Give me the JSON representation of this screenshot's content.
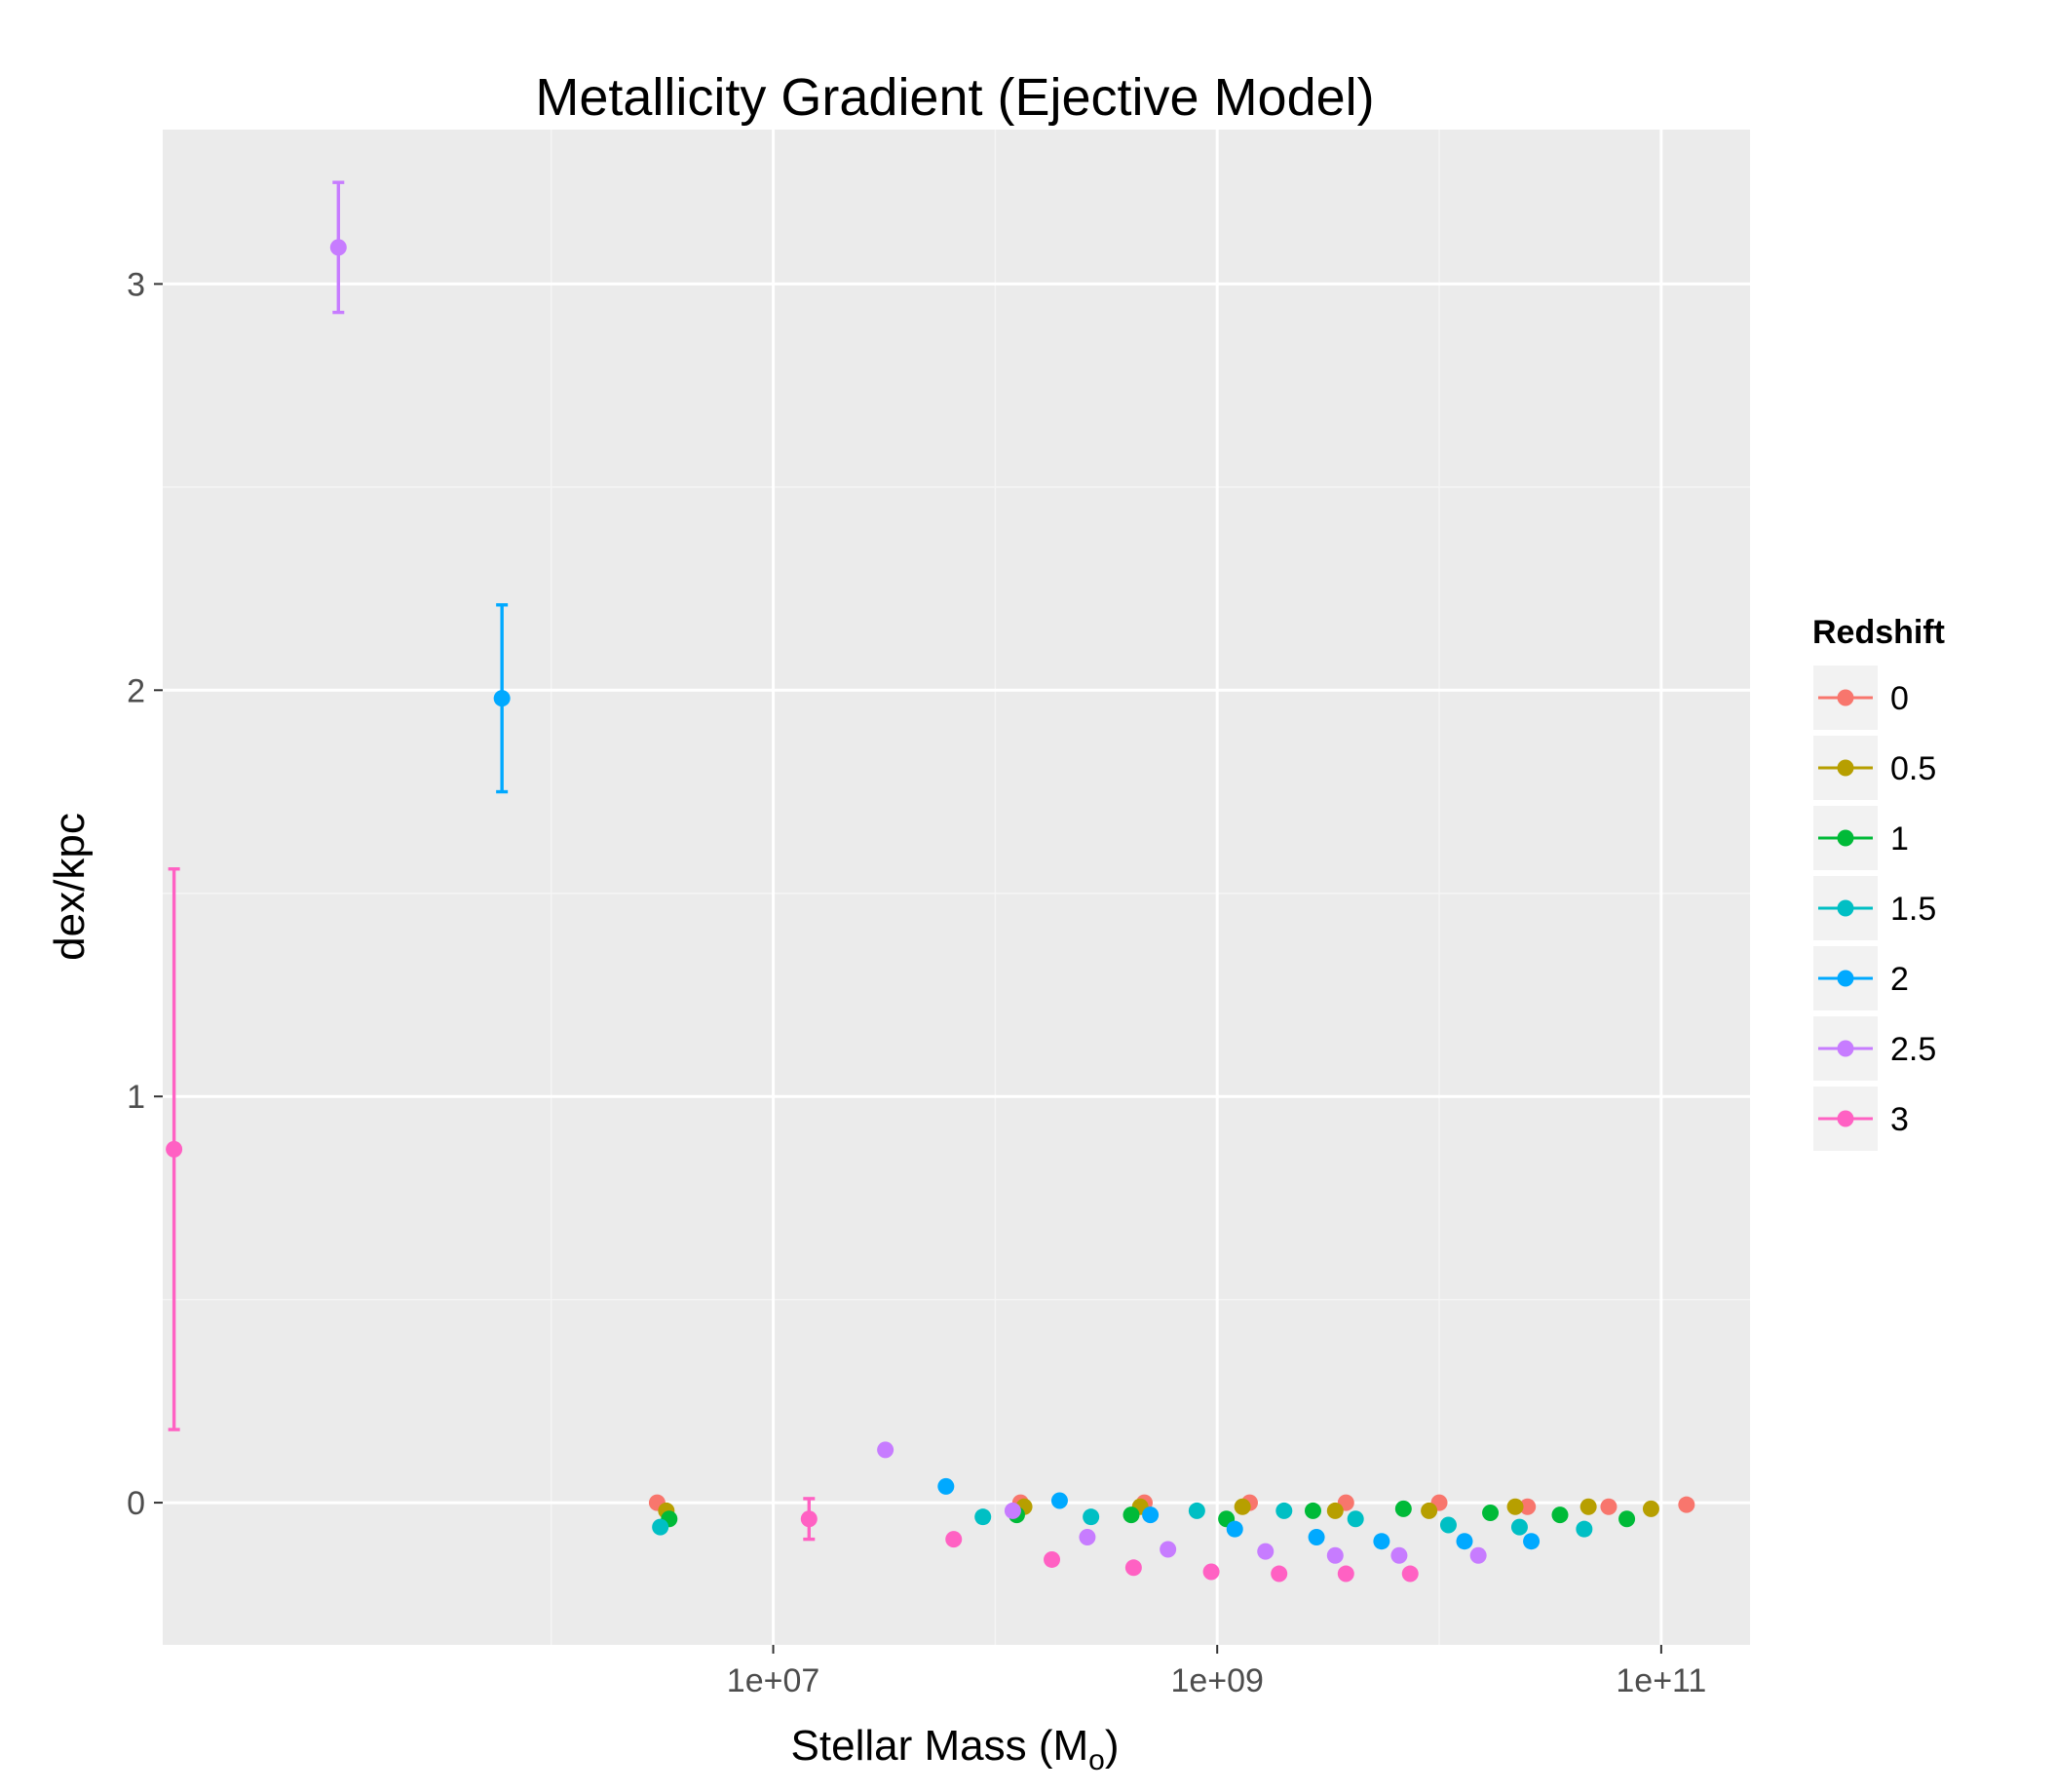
{
  "chart_data": {
    "type": "scatter",
    "title": "Metallicity Gradient (Ejective Model)",
    "xlabel": "Stellar Mass (M",
    "xlabel_subscript": "o",
    "xlabel_close": ")",
    "ylabel": "dex/kpc",
    "x_scale": "log10",
    "xlim_log10": [
      4.25,
      11.4
    ],
    "ylim": [
      -0.35,
      3.38
    ],
    "x_ticks": [
      {
        "value": 10000000,
        "label": "1e+07"
      },
      {
        "value": 1000000000,
        "label": "1e+09"
      },
      {
        "value": 100000000000,
        "label": "1e+11"
      }
    ],
    "x_minor_log10": [
      6,
      8,
      10
    ],
    "y_ticks": [
      {
        "value": 0,
        "label": "0"
      },
      {
        "value": 1,
        "label": "1"
      },
      {
        "value": 2,
        "label": "2"
      },
      {
        "value": 3,
        "label": "3"
      }
    ],
    "y_minor": [
      0.5,
      1.5,
      2.5
    ],
    "grid": true,
    "legend": {
      "title": "Redshift",
      "position": "right"
    },
    "series": [
      {
        "name": "0",
        "color": "#F8766D",
        "points": [
          {
            "x": 3000000.0,
            "y": 0.0
          },
          {
            "x": 130000000.0,
            "y": 0.0
          },
          {
            "x": 470000000.0,
            "y": 0.0
          },
          {
            "x": 1400000000.0,
            "y": 0.0
          },
          {
            "x": 3800000000.0,
            "y": 0.0
          },
          {
            "x": 10000000000.0,
            "y": 0.0
          },
          {
            "x": 25000000000.0,
            "y": -0.01
          },
          {
            "x": 58000000000.0,
            "y": -0.01
          },
          {
            "x": 130000000000.0,
            "y": -0.005
          }
        ]
      },
      {
        "name": "0.5",
        "color": "#B79F00",
        "points": [
          {
            "x": 3300000.0,
            "y": -0.02
          },
          {
            "x": 135000000.0,
            "y": -0.01
          },
          {
            "x": 450000000.0,
            "y": -0.01
          },
          {
            "x": 1300000000.0,
            "y": -0.01
          },
          {
            "x": 3400000000.0,
            "y": -0.02
          },
          {
            "x": 9000000000.0,
            "y": -0.02
          },
          {
            "x": 22000000000.0,
            "y": -0.01
          },
          {
            "x": 47000000000.0,
            "y": -0.01
          },
          {
            "x": 90000000000.0,
            "y": -0.015
          }
        ]
      },
      {
        "name": "1",
        "color": "#00BA38",
        "points": [
          {
            "x": 3400000.0,
            "y": -0.04
          },
          {
            "x": 125000000.0,
            "y": -0.03
          },
          {
            "x": 410000000.0,
            "y": -0.03
          },
          {
            "x": 1100000000.0,
            "y": -0.04
          },
          {
            "x": 2700000000.0,
            "y": -0.02
          },
          {
            "x": 6900000000.0,
            "y": -0.015
          },
          {
            "x": 17000000000.0,
            "y": -0.025
          },
          {
            "x": 35000000000.0,
            "y": -0.03
          },
          {
            "x": 70000000000.0,
            "y": -0.04
          }
        ]
      },
      {
        "name": "1.5",
        "color": "#00BFC4",
        "points": [
          {
            "x": 3100000.0,
            "y": -0.06
          },
          {
            "x": 88000000.0,
            "y": -0.035
          },
          {
            "x": 270000000.0,
            "y": -0.035
          },
          {
            "x": 810000000.0,
            "y": -0.02
          },
          {
            "x": 2000000000.0,
            "y": -0.02
          },
          {
            "x": 4200000000.0,
            "y": -0.04
          },
          {
            "x": 11000000000.0,
            "y": -0.055
          },
          {
            "x": 23000000000.0,
            "y": -0.06
          },
          {
            "x": 45000000000.0,
            "y": -0.065
          }
        ]
      },
      {
        "name": "2",
        "color": "#00A9FF",
        "points": [
          {
            "x": 600000.0,
            "y": 1.98,
            "ymin": 1.75,
            "ymax": 2.21
          },
          {
            "x": 60000000.0,
            "y": 0.04
          },
          {
            "x": 195000000.0,
            "y": 0.005
          },
          {
            "x": 500000000.0,
            "y": -0.03
          },
          {
            "x": 1200000000.0,
            "y": -0.065
          },
          {
            "x": 2800000000.0,
            "y": -0.085
          },
          {
            "x": 5500000000.0,
            "y": -0.095
          },
          {
            "x": 13000000000.0,
            "y": -0.095
          },
          {
            "x": 26000000000.0,
            "y": -0.095
          }
        ]
      },
      {
        "name": "2.5",
        "color": "#C77CFF",
        "points": [
          {
            "x": 110000.0,
            "y": 3.09,
            "ymin": 2.93,
            "ymax": 3.25
          },
          {
            "x": 32000000.0,
            "y": 0.13
          },
          {
            "x": 120000000.0,
            "y": -0.02
          },
          {
            "x": 260000000.0,
            "y": -0.085
          },
          {
            "x": 600000000.0,
            "y": -0.115
          },
          {
            "x": 1650000000.0,
            "y": -0.12
          },
          {
            "x": 3400000000.0,
            "y": -0.13
          },
          {
            "x": 6600000000.0,
            "y": -0.13
          },
          {
            "x": 15000000000.0,
            "y": -0.13
          }
        ]
      },
      {
        "name": "3",
        "color": "#FF61C3",
        "points": [
          {
            "x": 20000.0,
            "y": 0.87,
            "ymin": 0.18,
            "ymax": 1.56
          },
          {
            "x": 14500000.0,
            "y": -0.04,
            "ymin": -0.09,
            "ymax": 0.01
          },
          {
            "x": 65000000.0,
            "y": -0.09
          },
          {
            "x": 180000000.0,
            "y": -0.14
          },
          {
            "x": 420000000.0,
            "y": -0.16
          },
          {
            "x": 940000000.0,
            "y": -0.17
          },
          {
            "x": 1900000000.0,
            "y": -0.175
          },
          {
            "x": 3800000000.0,
            "y": -0.175
          },
          {
            "x": 7400000000.0,
            "y": -0.175
          }
        ]
      }
    ]
  }
}
